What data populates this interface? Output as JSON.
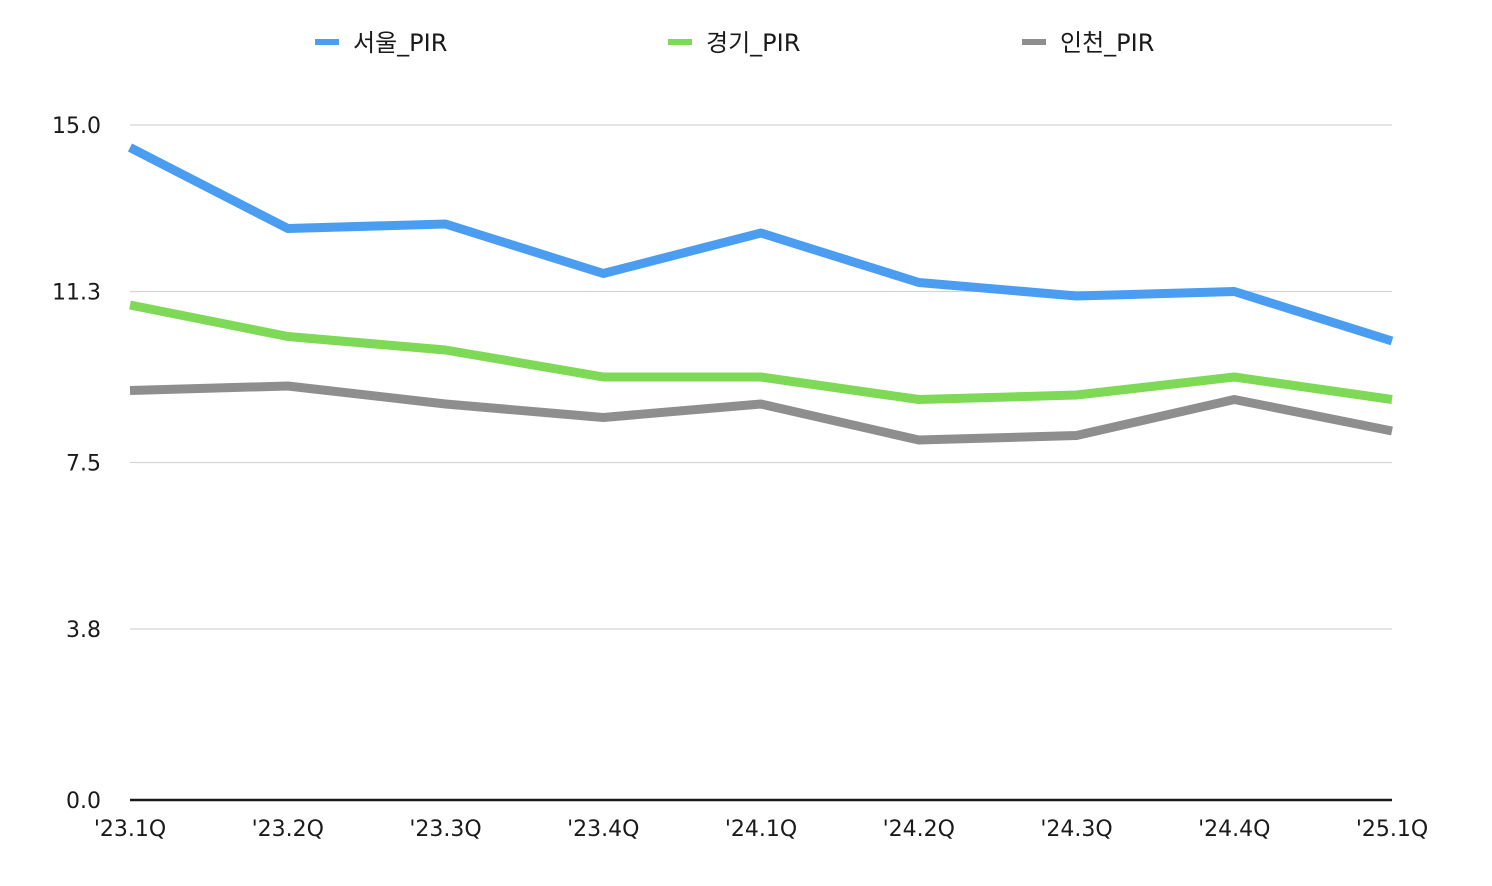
{
  "chart_data": {
    "type": "line",
    "categories": [
      "'23.1Q",
      "'23.2Q",
      "'23.3Q",
      "'23.4Q",
      "'24.1Q",
      "'24.2Q",
      "'24.3Q",
      "'24.4Q",
      "'25.1Q"
    ],
    "series": [
      {
        "name": "서울_PIR",
        "color": "#4a9df0",
        "values": [
          14.5,
          12.7,
          12.8,
          11.7,
          12.6,
          11.5,
          11.2,
          11.3,
          10.2
        ]
      },
      {
        "name": "경기_PIR",
        "color": "#7ed957",
        "values": [
          11.0,
          10.3,
          10.0,
          9.4,
          9.4,
          8.9,
          9.0,
          9.4,
          8.9
        ]
      },
      {
        "name": "인천_PIR",
        "color": "#8e8e8e",
        "values": [
          9.1,
          9.2,
          8.8,
          8.5,
          8.8,
          8.0,
          8.1,
          8.9,
          8.2
        ]
      }
    ],
    "yticks": [
      "0.0",
      "3.8",
      "7.5",
      "11.3",
      "15.0"
    ],
    "ylim": [
      0,
      15
    ],
    "grid": true,
    "legend_position": "top-center",
    "title": "",
    "xlabel": "",
    "ylabel": ""
  }
}
